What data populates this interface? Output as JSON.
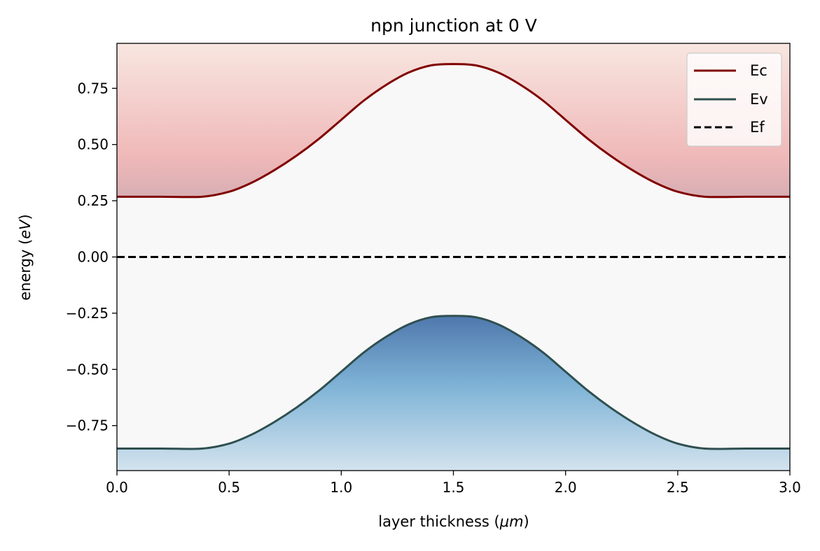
{
  "chart_data": {
    "type": "line",
    "title": "npn junction at 0 V",
    "xlabel_prefix": "layer thickness (",
    "xlabel_unit": "μm",
    "xlabel_suffix": ")",
    "ylabel_prefix": "energy (",
    "ylabel_unit": "eV",
    "ylabel_suffix": ")",
    "xlim": [
      0.0,
      3.0
    ],
    "ylim": [
      -0.95,
      0.95
    ],
    "x_ticks": [
      0.0,
      0.5,
      1.0,
      1.5,
      2.0,
      2.5,
      3.0
    ],
    "x_tick_labels": [
      "0.0",
      "0.5",
      "1.0",
      "1.5",
      "2.0",
      "2.5",
      "3.0"
    ],
    "y_ticks": [
      0.75,
      0.5,
      0.25,
      0.0,
      -0.25,
      -0.5,
      -0.75
    ],
    "y_tick_labels": [
      "0.75",
      "0.50",
      "0.25",
      "0.00",
      "−0.25",
      "−0.50",
      "−0.75"
    ],
    "grid": false,
    "legend_position": "top-right",
    "series": [
      {
        "name": "Ec",
        "color": "#800000",
        "linestyle": "solid",
        "x": [
          0.0,
          0.2,
          0.38,
          0.5,
          0.6,
          0.7,
          0.8,
          0.9,
          1.0,
          1.1,
          1.2,
          1.3,
          1.4,
          1.5,
          1.6,
          1.7,
          1.8,
          1.9,
          2.0,
          2.1,
          2.2,
          2.3,
          2.4,
          2.5,
          2.62,
          2.8,
          3.0
        ],
        "y": [
          0.268,
          0.268,
          0.268,
          0.29,
          0.33,
          0.385,
          0.45,
          0.525,
          0.61,
          0.695,
          0.765,
          0.82,
          0.852,
          0.858,
          0.852,
          0.82,
          0.765,
          0.695,
          0.61,
          0.525,
          0.45,
          0.385,
          0.33,
          0.29,
          0.268,
          0.268,
          0.268
        ]
      },
      {
        "name": "Ev",
        "color": "#2f4f4f",
        "linestyle": "solid",
        "x": [
          0.0,
          0.2,
          0.38,
          0.5,
          0.6,
          0.7,
          0.8,
          0.9,
          1.0,
          1.1,
          1.2,
          1.3,
          1.4,
          1.5,
          1.6,
          1.7,
          1.8,
          1.9,
          2.0,
          2.1,
          2.2,
          2.3,
          2.4,
          2.5,
          2.62,
          2.8,
          3.0
        ],
        "y": [
          -0.852,
          -0.852,
          -0.852,
          -0.83,
          -0.79,
          -0.735,
          -0.67,
          -0.595,
          -0.51,
          -0.425,
          -0.355,
          -0.3,
          -0.268,
          -0.262,
          -0.268,
          -0.3,
          -0.355,
          -0.425,
          -0.51,
          -0.595,
          -0.67,
          -0.735,
          -0.79,
          -0.83,
          -0.852,
          -0.852,
          -0.852
        ]
      },
      {
        "name": "Ef",
        "color": "#000000",
        "linestyle": "dashed",
        "x": [
          0.0,
          3.0
        ],
        "y": [
          0.0,
          0.0
        ]
      }
    ],
    "colors": {
      "background": "#f8f8f8",
      "conduction_fill_top": "#f8e6e0",
      "conduction_fill_mid": "#efb8b8",
      "conduction_fill_bottom": "#d7aeb4",
      "valence_fill_top": "#4f78ad",
      "valence_fill_mid": "#7eb3d6",
      "valence_fill_bottom": "#d3e3ee"
    }
  }
}
